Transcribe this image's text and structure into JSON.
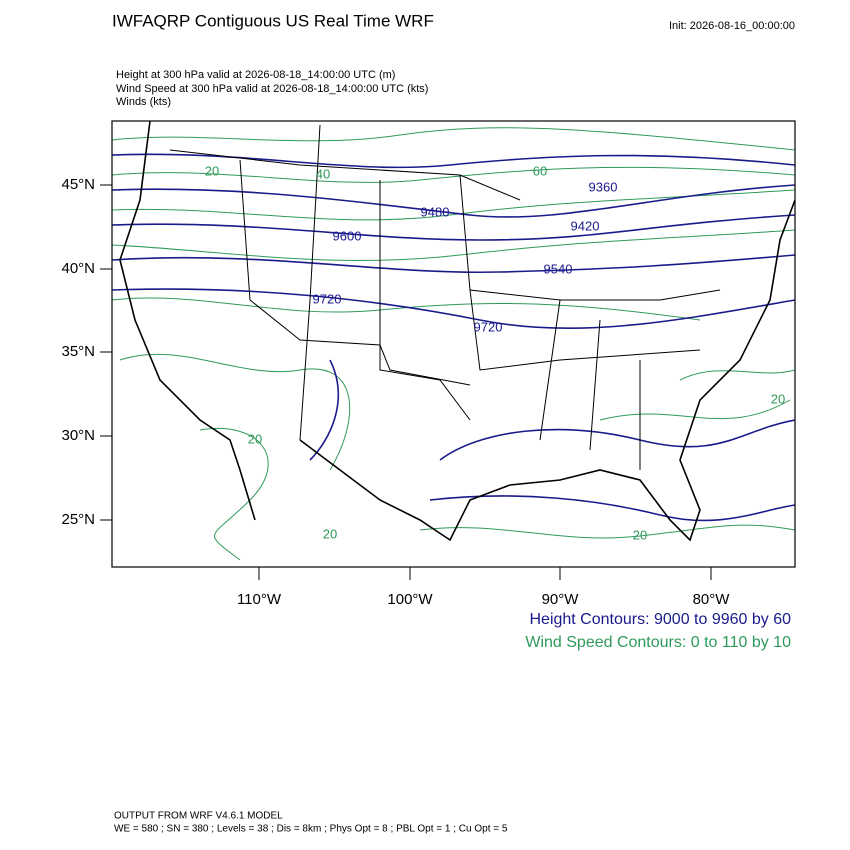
{
  "header": {
    "title": "IWFAQRP Contiguous US Real Time WRF",
    "init": "Init: 2026-08-16_00:00:00",
    "fields": [
      "Height at 300 hPa valid at 2026-08-18_14:00:00 UTC   (m)",
      "Wind Speed at 300 hPa valid at 2026-08-18_14:00:00 UTC   (kts)",
      "Winds   (kts)"
    ]
  },
  "map": {
    "lat_labels": [
      "45°N",
      "40°N",
      "35°N",
      "30°N",
      "25°N"
    ],
    "lon_labels": [
      "110°W",
      "100°W",
      "90°W",
      "80°W"
    ],
    "height_contour_labels": [
      "9360",
      "9480",
      "9420",
      "9600",
      "9540",
      "9720",
      "9720"
    ],
    "wind_contour_labels": [
      "20",
      "40",
      "60",
      "20",
      "20",
      "20",
      "20"
    ]
  },
  "legend": {
    "height": "Height Contours: 9000 to 9960 by 60",
    "wind": "Wind Speed Contours: 0 to 110 by 10"
  },
  "footer": {
    "model": "OUTPUT FROM WRF V4.6.1 MODEL",
    "settings": "WE = 580 ; SN = 380 ; Levels = 38 ; Dis = 8km ; Phys Opt = 8 ; PBL Opt = 1 ; Cu Opt = 5"
  }
}
